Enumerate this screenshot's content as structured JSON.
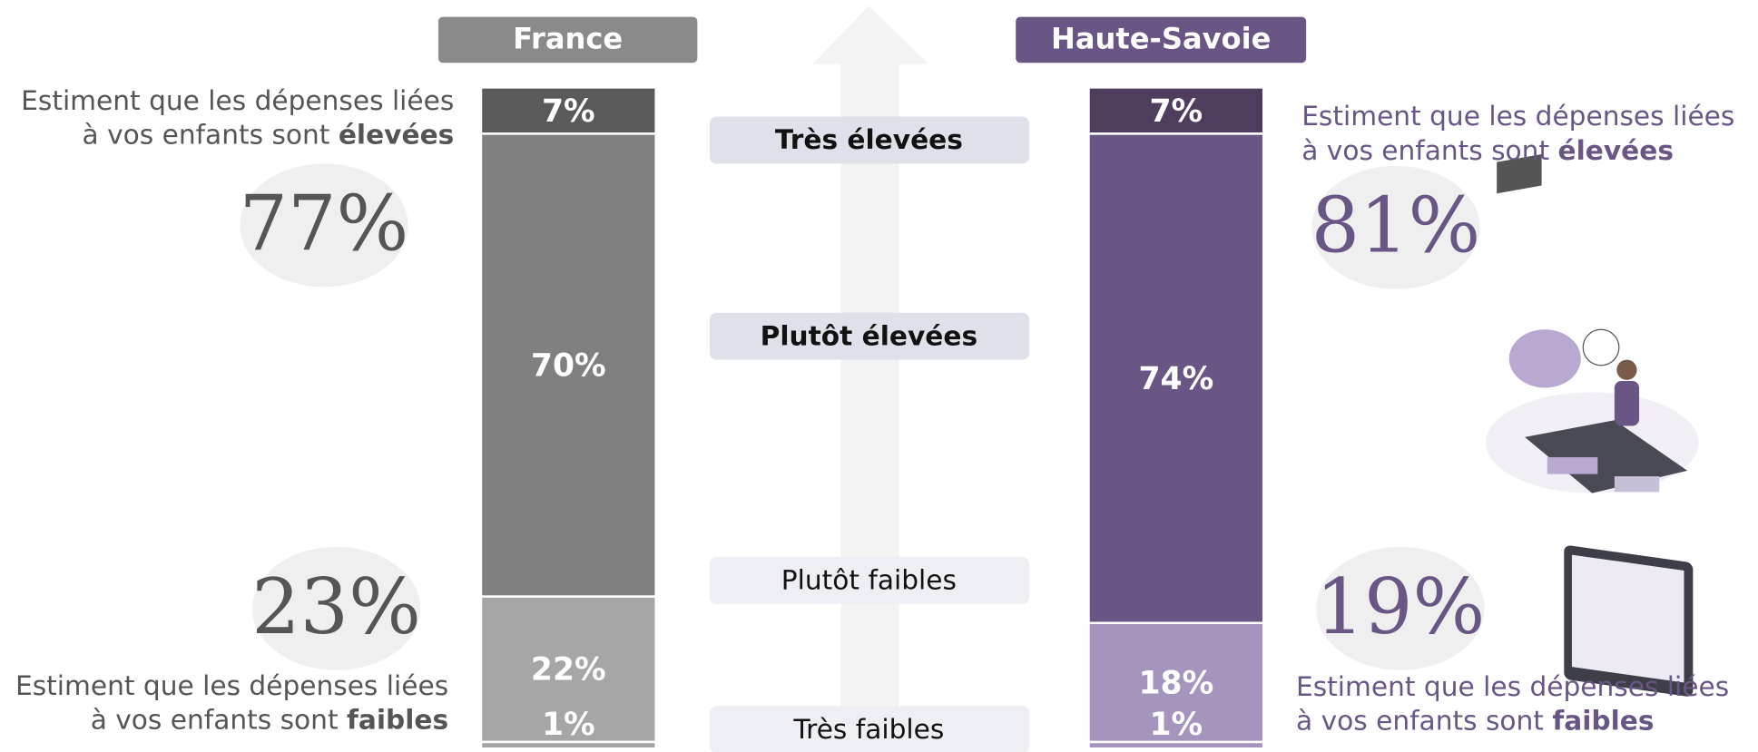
{
  "chart_data": {
    "type": "stacked_bar",
    "categories": [
      "France",
      "Haute-Savoie"
    ],
    "series": [
      {
        "name": "Très élevées",
        "colors": [
          "#5a5a5a",
          "#4f3d5e"
        ],
        "values": [
          7,
          7
        ],
        "value_labels": [
          "7%",
          "7%"
        ]
      },
      {
        "name": "Plutôt élevées",
        "colors": [
          "#808080",
          "#6a5684"
        ],
        "values": [
          70,
          74
        ],
        "value_labels": [
          "70%",
          "74%"
        ]
      },
      {
        "name": "Plutôt faibles",
        "colors": [
          "#a6a6a6",
          "#a595bd"
        ],
        "values": [
          22,
          18
        ],
        "value_labels": [
          "22%",
          "18%"
        ]
      },
      {
        "name": "Très faibles",
        "colors": [
          "#a6a6a6",
          "#a595bd"
        ],
        "values": [
          1,
          1
        ],
        "value_labels": [
          "1%",
          "1%"
        ]
      }
    ],
    "category_colors": [
      "#8a8a8a",
      "#6a5684"
    ],
    "caption_lines": [
      "Estiment que les dépenses liées",
      "à vos enfants sont"
    ],
    "high_word": "élevées",
    "low_word": "faibles",
    "summaries": [
      {
        "values": [
          77,
          23
        ],
        "value_labels": [
          "77%",
          "23%"
        ],
        "color": "#555555"
      },
      {
        "values": [
          81,
          19
        ],
        "value_labels": [
          "81%",
          "19%"
        ],
        "color": "#6a5684"
      }
    ]
  }
}
